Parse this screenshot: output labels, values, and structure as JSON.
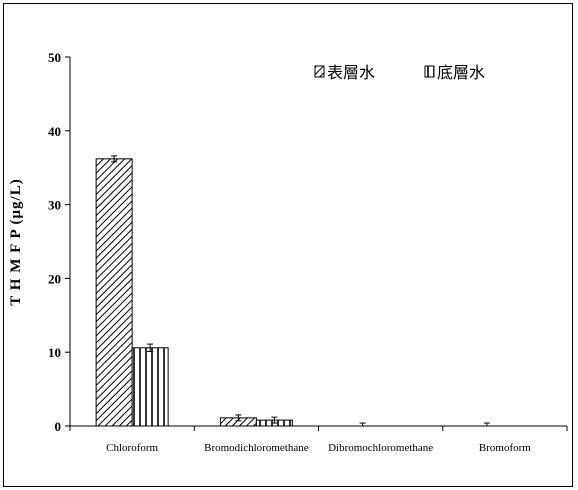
{
  "chart_data": {
    "type": "bar",
    "title": "",
    "xlabel": "",
    "ylabel": "T H M F P (μg/L)",
    "ylim": [
      0,
      50
    ],
    "yticks": [
      0,
      10,
      20,
      30,
      40,
      50
    ],
    "categories": [
      "Chloroform",
      "Bromodichloromethane",
      "Dibromochloromethane",
      "Bromoform"
    ],
    "series": [
      {
        "name": "表層水",
        "values": [
          36.2,
          1.1,
          0,
          0
        ],
        "errors": [
          0.4,
          0.4,
          0.4,
          0.4
        ],
        "pattern": "diagonal"
      },
      {
        "name": "底層水",
        "values": [
          10.6,
          0.8,
          0,
          0
        ],
        "errors": [
          0.5,
          0.4,
          0,
          0
        ],
        "pattern": "vertical"
      }
    ],
    "legend_position": "top-right",
    "grid": false
  }
}
